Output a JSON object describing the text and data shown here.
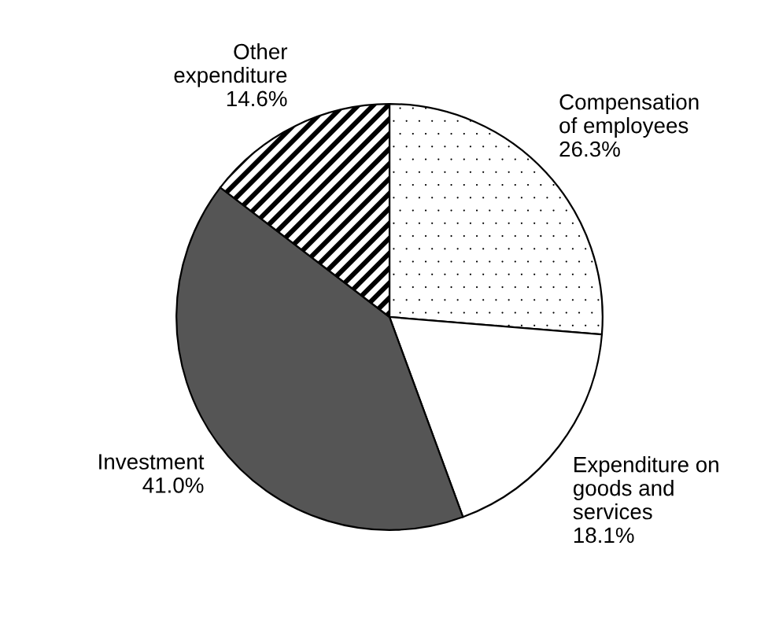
{
  "chart_data": {
    "type": "pie",
    "categories": [
      "Compensation of employees",
      "Expenditure on goods and services",
      "Investment",
      "Other expenditure"
    ],
    "values": [
      26.3,
      18.1,
      41.0,
      14.6
    ],
    "value_labels": [
      "26.3%",
      "18.1%",
      "41.0%",
      "14.6%"
    ],
    "colors": [
      "#ffffff",
      "#ffffff",
      "#555555",
      "#ffffff"
    ],
    "legend": false
  }
}
